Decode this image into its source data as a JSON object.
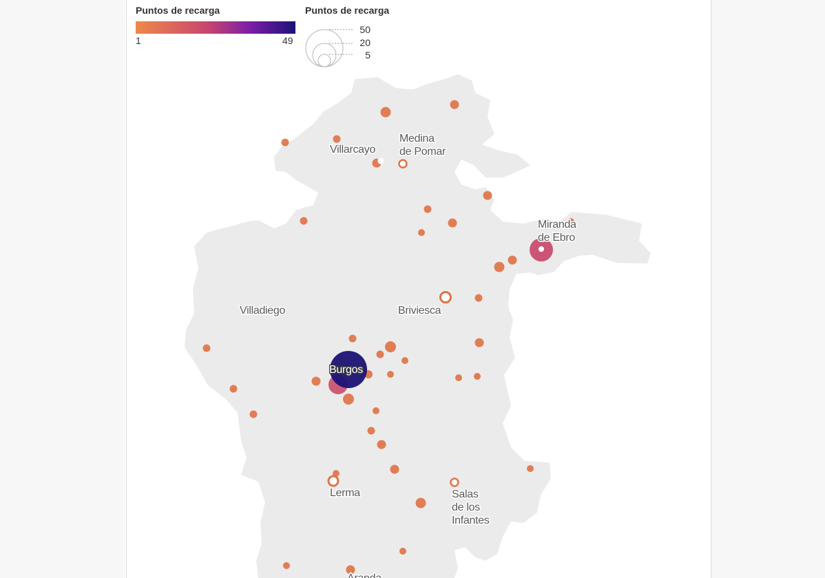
{
  "legend": {
    "color_title": "Puntos de recarga",
    "color_min": "1",
    "color_max": "49",
    "size_title": "Puntos de recarga",
    "size_values": [
      "50",
      "20",
      "5"
    ]
  },
  "colors": {
    "low": "#e0784a",
    "mid": "#c84a6a",
    "high": "#1c1275",
    "province_fill": "#ebebeb"
  },
  "places": [
    {
      "name_lines": [
        "Medina",
        "de Pomar"
      ]
    },
    {
      "name_lines": [
        "Villarcayo"
      ]
    },
    {
      "name_lines": [
        "Miranda",
        "de Ebro"
      ]
    },
    {
      "name_lines": [
        "Villadiego"
      ]
    },
    {
      "name_lines": [
        "Briviesca"
      ]
    },
    {
      "name_lines": [
        "Burgos"
      ]
    },
    {
      "name_lines": [
        "Lerma"
      ]
    },
    {
      "name_lines": [
        "Salas",
        "de los",
        "Infantes"
      ]
    },
    {
      "name_lines": [
        "Aranda"
      ]
    }
  ]
}
